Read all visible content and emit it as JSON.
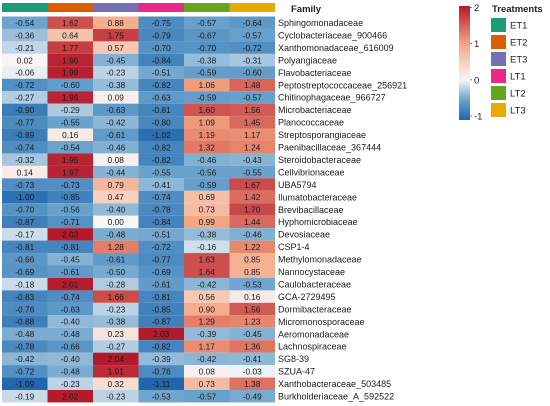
{
  "chart_data": {
    "type": "heatmap",
    "title": "",
    "row_header": "Family",
    "columns": [
      "ET1",
      "ET2",
      "ET3",
      "LT1",
      "LT2",
      "LT3"
    ],
    "column_groups": [
      "ET1",
      "ET2",
      "ET3",
      "LT1",
      "LT2",
      "LT3"
    ],
    "rows": [
      "Sphingomonadaceae",
      "Cyclobacteriaceae_900466",
      "Xanthomonadaceae_616009",
      "Polyangiaceae",
      "Flavobacteriaceae",
      "Peptostreptococcaceae_256921",
      "Chitinophagaceae_966727",
      "Microbacteriaceae",
      "Planococcaceae",
      "Streptosporangiaceae",
      "Paenibacillaceae_367444",
      "Steroidobacteraceae",
      "Cellvibrionaceae",
      "UBA5794",
      "Ilumatobacteraceae",
      "Brevibacillaceae",
      "Hyphomicrobiaceae",
      "Devosiaceae",
      "CSP1-4",
      "Methylomonadaceae",
      "Nannocystaceae",
      "Caulobacteraceae",
      "GCA-2729495",
      "Dormibacteraceae",
      "Micromonosporaceae",
      "Aeromonadaceae",
      "Lachnospiraceae",
      "SG8-39",
      "SZUA-47",
      "Xanthobacteraceae_503485",
      "Burkholderiaceae_A_592522"
    ],
    "values": [
      [
        -0.54,
        1.62,
        0.88,
        -0.75,
        -0.57,
        -0.64
      ],
      [
        -0.36,
        0.64,
        1.75,
        -0.79,
        -0.67,
        -0.57
      ],
      [
        -0.21,
        1.77,
        0.57,
        -0.7,
        -0.7,
        -0.72
      ],
      [
        0.02,
        1.96,
        -0.45,
        -0.84,
        -0.38,
        -0.31
      ],
      [
        -0.06,
        1.99,
        -0.23,
        -0.51,
        -0.59,
        -0.6
      ],
      [
        -0.72,
        -0.6,
        -0.38,
        -0.82,
        1.06,
        1.48
      ],
      [
        -0.27,
        1.96,
        0.09,
        -0.63,
        -0.59,
        -0.57
      ],
      [
        -0.9,
        -0.29,
        -0.63,
        -0.81,
        1.6,
        1.56
      ],
      [
        -0.77,
        -0.55,
        -0.42,
        -0.8,
        1.09,
        1.45
      ],
      [
        -0.89,
        0.16,
        -0.61,
        -1.02,
        1.19,
        1.17
      ],
      [
        -0.74,
        -0.54,
        -0.46,
        -0.82,
        1.32,
        1.24
      ],
      [
        -0.32,
        1.95,
        0.08,
        -0.82,
        -0.46,
        -0.43
      ],
      [
        0.14,
        1.97,
        -0.44,
        -0.55,
        -0.56,
        -0.55
      ],
      [
        -0.73,
        -0.73,
        0.79,
        -0.41,
        -0.59,
        1.67
      ],
      [
        -1.0,
        -0.85,
        0.47,
        -0.74,
        0.69,
        1.42
      ],
      [
        -0.7,
        -0.56,
        -0.4,
        -0.78,
        0.73,
        1.7
      ],
      [
        -0.87,
        -0.71,
        0.0,
        -0.84,
        0.99,
        1.44
      ],
      [
        -0.17,
        2.03,
        -0.48,
        -0.51,
        -0.38,
        -0.46
      ],
      [
        -0.81,
        -0.81,
        1.28,
        -0.72,
        -0.16,
        1.22
      ],
      [
        -0.66,
        -0.45,
        -0.61,
        -0.77,
        1.63,
        0.85
      ],
      [
        -0.69,
        -0.61,
        -0.5,
        -0.69,
        1.64,
        0.85
      ],
      [
        -0.18,
        2.01,
        -0.28,
        -0.61,
        -0.42,
        -0.53
      ],
      [
        -0.83,
        -0.74,
        1.66,
        -0.81,
        0.56,
        0.16
      ],
      [
        -0.76,
        -0.63,
        -0.23,
        -0.85,
        0.9,
        1.56
      ],
      [
        -0.88,
        -0.4,
        -0.38,
        -0.87,
        1.29,
        1.23
      ],
      [
        -0.48,
        -0.48,
        0.23,
        2.03,
        -0.39,
        -0.45
      ],
      [
        -0.78,
        -0.66,
        -0.27,
        -0.82,
        1.17,
        1.36
      ],
      [
        -0.42,
        -0.4,
        2.04,
        -0.39,
        -0.42,
        -0.41
      ],
      [
        -0.72,
        -0.48,
        1.91,
        -0.76,
        0.08,
        -0.03
      ],
      [
        -1.09,
        -0.23,
        0.32,
        -1.11,
        0.73,
        1.38
      ],
      [
        -0.19,
        2.02,
        -0.23,
        -0.53,
        -0.57,
        -0.49
      ]
    ],
    "color_scale": {
      "min": -1.11,
      "max": 2.04,
      "ticks": [
        -1,
        0,
        1,
        2
      ],
      "stops": [
        {
          "value": -1.1,
          "color": "#2166ac"
        },
        {
          "value": -0.55,
          "color": "#6aa2cc"
        },
        {
          "value": 0.0,
          "color": "#f7f7f7"
        },
        {
          "value": 1.0,
          "color": "#f4a582"
        },
        {
          "value": 2.05,
          "color": "#b2182b"
        }
      ]
    }
  },
  "legend": {
    "title": "Treatments",
    "items": [
      {
        "label": "ET1",
        "color": "#1b9e77"
      },
      {
        "label": "ET2",
        "color": "#d95f02"
      },
      {
        "label": "ET3",
        "color": "#7570b3"
      },
      {
        "label": "LT1",
        "color": "#e7298a"
      },
      {
        "label": "LT2",
        "color": "#66a61e"
      },
      {
        "label": "LT3",
        "color": "#e6ab02"
      }
    ]
  }
}
